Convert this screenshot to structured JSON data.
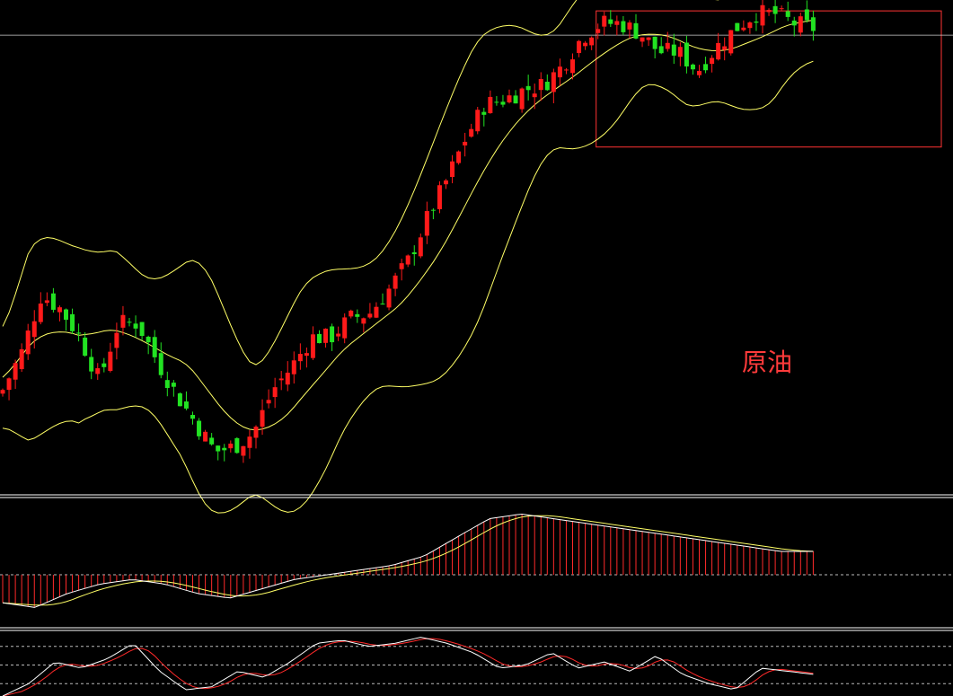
{
  "label": "原油",
  "colors": {
    "background": "#000000",
    "up_candle": "#ff1a1a",
    "down_candle": "#22e322",
    "boll_band": "#ffff66",
    "macd_dif": "#ffffff",
    "macd_dea": "#ffff66",
    "histogram": "#ff2a2a",
    "kdj_k": "#ffffff",
    "kdj_d": "#ff2a2a",
    "highlight_box": "#ff3333",
    "price_line": "#d0d0d0",
    "separator": "#ffffff",
    "zero_line": "#bbbbbb"
  },
  "chart_data": {
    "type": "candlestick",
    "grid": false,
    "panels": [
      "price",
      "macd",
      "kdj"
    ],
    "price_ylim": [
      0,
      100
    ],
    "macd_ylim": [
      -10,
      15
    ],
    "kdj_ylim": [
      0,
      100
    ],
    "close": [
      20,
      28,
      40,
      37,
      31,
      22,
      34,
      34,
      26,
      19,
      13,
      7,
      8,
      11,
      20,
      25,
      31,
      31,
      35,
      36,
      41,
      47,
      56,
      64,
      73,
      80,
      81,
      83,
      84,
      88,
      94,
      97,
      97,
      95,
      91,
      91,
      87,
      92,
      96,
      99,
      99,
      97,
      96
    ]
  }
}
